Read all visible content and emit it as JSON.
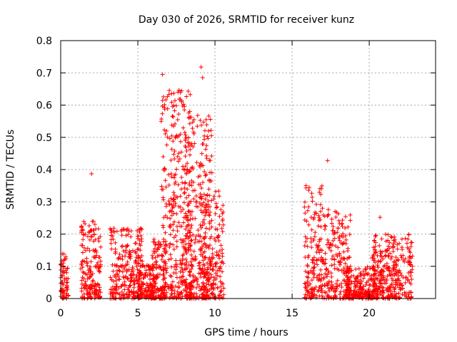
{
  "chart_data": {
    "type": "scatter",
    "title": "Day 030 of 2026, SRMTID for receiver kunz",
    "xlabel": "GPS time / hours",
    "ylabel": "SRMTID / TECUs",
    "xlim": [
      0,
      24.3
    ],
    "ylim": [
      0,
      0.8
    ],
    "x_ticks": [
      0,
      5,
      10,
      15,
      20
    ],
    "x_tick_labels": [
      "0",
      "5",
      "10",
      "15",
      "20"
    ],
    "y_ticks": [
      0,
      0.1,
      0.2,
      0.3,
      0.4,
      0.5,
      0.6,
      0.7,
      0.8
    ],
    "y_tick_labels": [
      "0",
      "0.1",
      "0.2",
      "0.3",
      "0.4",
      "0.5",
      "0.6",
      "0.7",
      "0.8"
    ],
    "grid": true,
    "marker": "plus",
    "series": [
      {
        "name": "SRMTID",
        "color": "#ff0000",
        "clusters": [
          {
            "x_range": [
              0.0,
              0.5
            ],
            "y_max": 0.14,
            "count": 70
          },
          {
            "x_range": [
              1.3,
              2.6
            ],
            "y_max": 0.24,
            "count": 180
          },
          {
            "x_range": [
              3.2,
              5.3
            ],
            "y_max": 0.22,
            "count": 260
          },
          {
            "x_range": [
              5.0,
              6.2
            ],
            "y_max": 0.11,
            "count": 140
          },
          {
            "x_range": [
              5.8,
              6.8
            ],
            "y_max": 0.2,
            "count": 120
          },
          {
            "x_range": [
              6.5,
              8.5
            ],
            "y_max": 0.65,
            "count": 360
          },
          {
            "x_range": [
              8.0,
              9.8
            ],
            "y_max": 0.57,
            "count": 280
          },
          {
            "x_range": [
              9.0,
              10.6
            ],
            "y_max": 0.34,
            "count": 200
          },
          {
            "x_range": [
              15.8,
              17.0
            ],
            "y_max": 0.35,
            "count": 160
          },
          {
            "x_range": [
              17.0,
              18.8
            ],
            "y_max": 0.28,
            "count": 200
          },
          {
            "x_range": [
              18.5,
              20.5
            ],
            "y_max": 0.1,
            "count": 240
          },
          {
            "x_range": [
              20.2,
              22.8
            ],
            "y_max": 0.2,
            "count": 320
          }
        ],
        "highlights": [
          {
            "x": 2.0,
            "y": 0.387
          },
          {
            "x": 6.6,
            "y": 0.695
          },
          {
            "x": 9.1,
            "y": 0.718
          },
          {
            "x": 9.2,
            "y": 0.685
          },
          {
            "x": 7.6,
            "y": 0.64
          },
          {
            "x": 17.3,
            "y": 0.428
          },
          {
            "x": 20.7,
            "y": 0.252
          },
          {
            "x": 15.9,
            "y": 0.35
          },
          {
            "x": 9.8,
            "y": 0.39
          },
          {
            "x": 8.3,
            "y": 0.56
          }
        ]
      }
    ]
  }
}
